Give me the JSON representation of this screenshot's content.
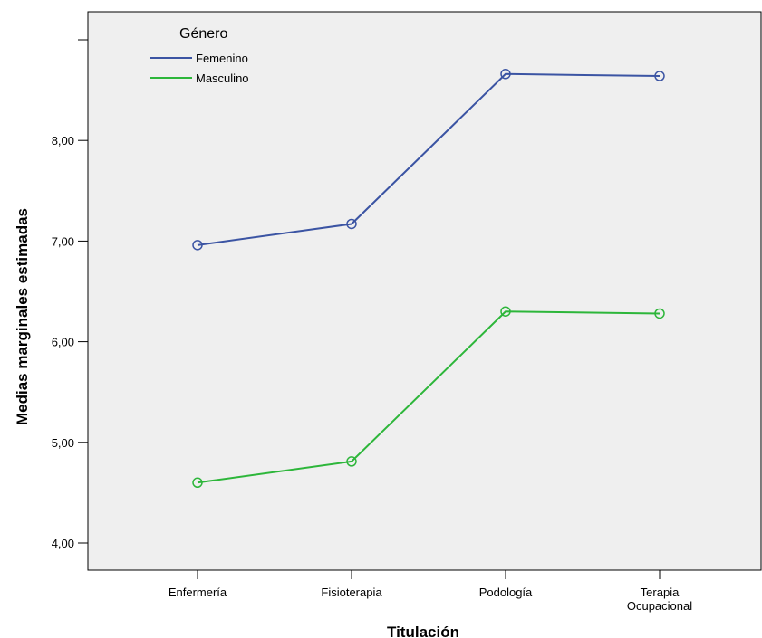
{
  "chart_data": {
    "type": "line",
    "title": "",
    "xlabel": "Titulación",
    "ylabel": "Medias marginales estimadas",
    "categories": [
      [
        "Enfermería"
      ],
      [
        "Fisioterapia"
      ],
      [
        "Podología"
      ],
      [
        "Terapia",
        "Ocupacional"
      ]
    ],
    "yticks": [
      "4,00",
      "5,00",
      "6,00",
      "7,00",
      "8,00"
    ],
    "ytick_values": [
      4,
      5,
      6,
      7,
      8
    ],
    "ylim": [
      3.77,
      9.27
    ],
    "grid": false,
    "legend": {
      "title": "Género",
      "position": "top-left"
    },
    "series": [
      {
        "name": "Femenino",
        "color": "#3b54a3",
        "values": [
          6.96,
          7.17,
          8.66,
          8.64
        ]
      },
      {
        "name": "Masculino",
        "color": "#2db63a",
        "values": [
          4.6,
          4.81,
          6.3,
          6.28
        ]
      }
    ],
    "marker": "open-circle",
    "plot_background": "#efefef"
  }
}
